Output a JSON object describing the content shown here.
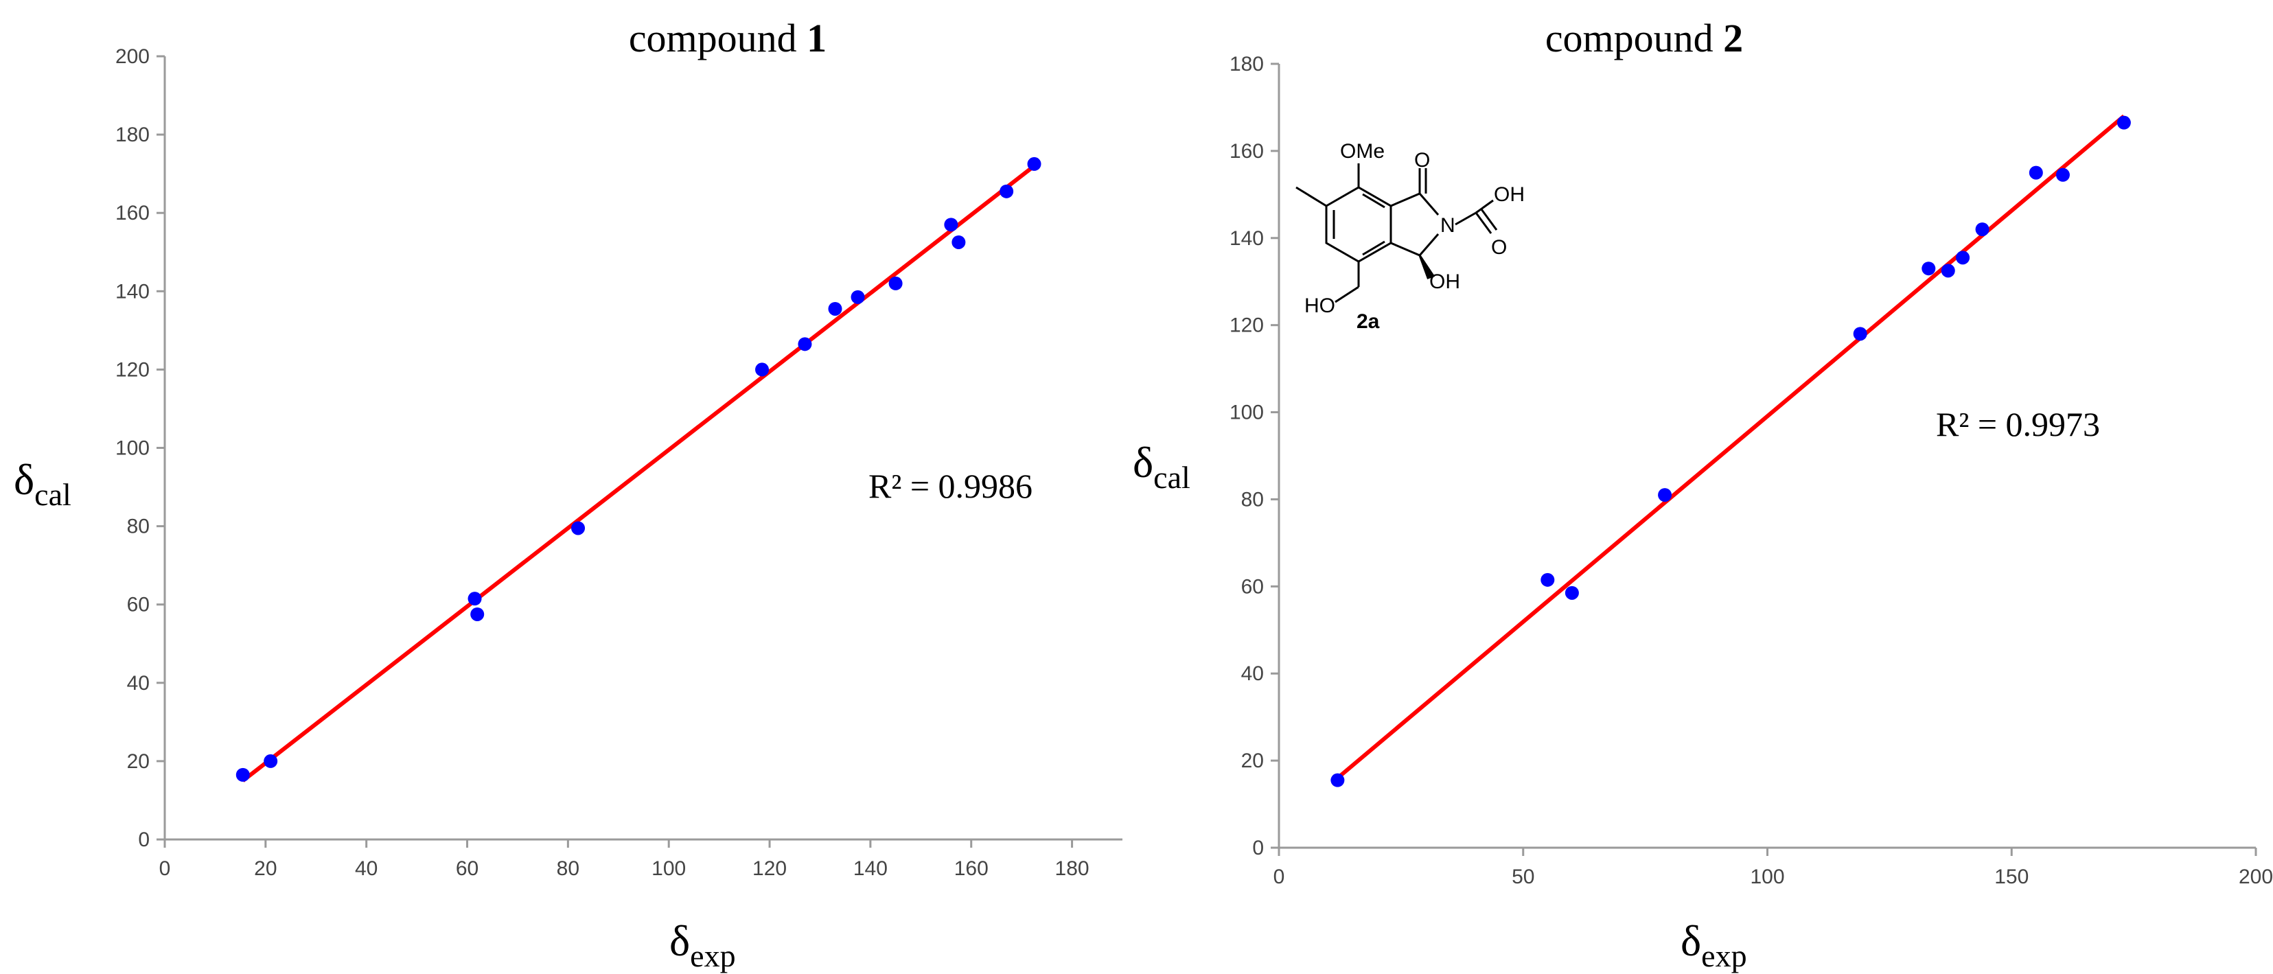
{
  "chart_data": [
    {
      "type": "scatter",
      "title_prefix": "compound ",
      "title_number": "1",
      "xlabel_main": "δ",
      "xlabel_sub": "exp",
      "ylabel_main": "δ",
      "ylabel_sub": "cal",
      "xlim": [
        0,
        190
      ],
      "ylim": [
        0,
        200
      ],
      "xticks": [
        0,
        20,
        40,
        60,
        80,
        100,
        120,
        140,
        160,
        180
      ],
      "yticks": [
        0,
        20,
        40,
        60,
        80,
        100,
        120,
        140,
        160,
        180,
        200
      ],
      "r2_label": "R² = 0.9986",
      "point_color": "#0000ff",
      "line_color": "#ff0000",
      "trendline": {
        "x": [
          15.5,
          172.5
        ],
        "y": [
          15.0,
          172.0
        ]
      },
      "series": [
        {
          "x": [
            15.5,
            21,
            61.5,
            62,
            82,
            118.5,
            127,
            133,
            137.5,
            145,
            156,
            157.5,
            167,
            172.5
          ],
          "y": [
            16.5,
            20.0,
            61.5,
            57.5,
            79.5,
            120,
            126.5,
            135.5,
            138.5,
            142,
            157,
            152.5,
            165.5,
            172.5
          ]
        }
      ]
    },
    {
      "type": "scatter",
      "title_prefix": "compound ",
      "title_number": "2",
      "xlabel_main": "δ",
      "xlabel_sub": "exp",
      "ylabel_main": "δ",
      "ylabel_sub": "cal",
      "xlim": [
        0,
        200
      ],
      "ylim": [
        0,
        180
      ],
      "xticks": [
        0,
        50,
        100,
        150,
        200
      ],
      "yticks": [
        0,
        20,
        40,
        60,
        80,
        100,
        120,
        140,
        160,
        180
      ],
      "r2_label": "R² = 0.9973",
      "point_color": "#0000ff",
      "line_color": "#ff0000",
      "trendline": {
        "x": [
          12,
          173
        ],
        "y": [
          16,
          168
        ]
      },
      "series": [
        {
          "x": [
            12,
            55,
            60,
            79,
            119,
            133,
            137,
            140,
            144,
            155,
            160.5,
            173
          ],
          "y": [
            15.5,
            61.5,
            58.5,
            81,
            118,
            133,
            132.5,
            135.5,
            142,
            155,
            154.5,
            166.5
          ]
        }
      ]
    }
  ],
  "structure_2a": {
    "label_ome": "OMe",
    "label_o_top": "O",
    "label_oh_acid": "OH",
    "label_o_acid": "O",
    "label_n": "N",
    "label_oh_ring": "OH",
    "label_ho": "HO",
    "label_compound": "2a"
  }
}
